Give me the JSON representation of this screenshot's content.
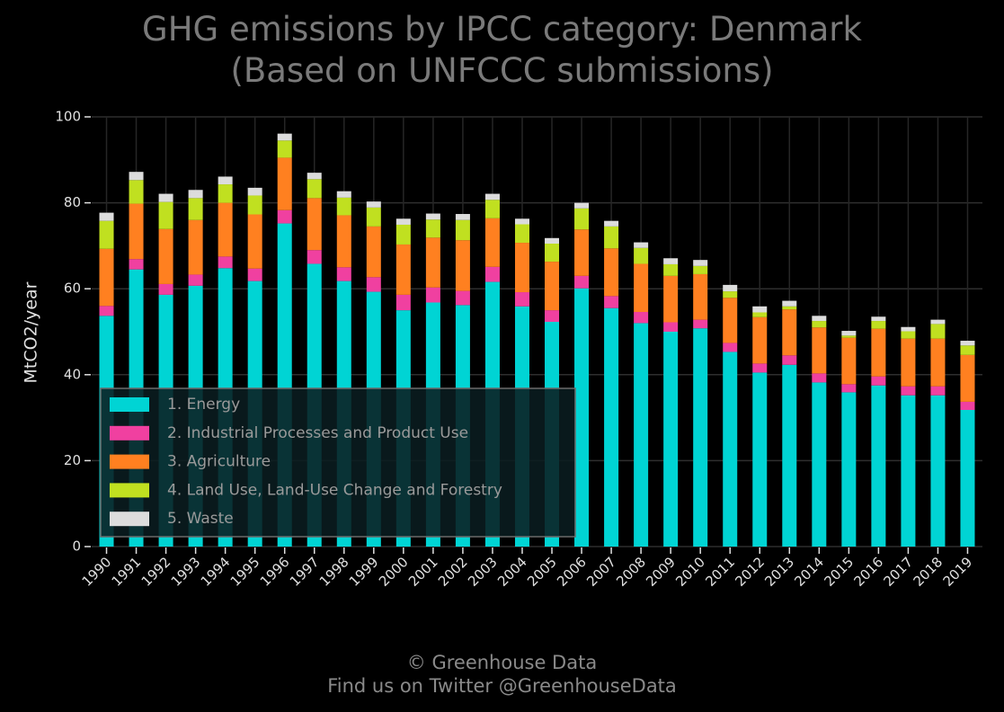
{
  "title": {
    "line1": "GHG emissions by IPCC category: Denmark",
    "line2": "(Based on UNFCCC submissions)"
  },
  "footer": {
    "line1": "© Greenhouse Data",
    "line2": "Find us on Twitter @GreenhouseData"
  },
  "chart_data": {
    "type": "bar",
    "stacked": true,
    "title": "GHG emissions by IPCC category: Denmark (Based on UNFCCC submissions)",
    "xlabel": "",
    "ylabel": "MtCO2/year",
    "ylim": [
      0,
      100
    ],
    "yticks": [
      0,
      20,
      40,
      60,
      80,
      100
    ],
    "grid": true,
    "legend_position": "lower-left",
    "categories": [
      "1990",
      "1991",
      "1992",
      "1993",
      "1994",
      "1995",
      "1996",
      "1997",
      "1998",
      "1999",
      "2000",
      "2001",
      "2002",
      "2003",
      "2004",
      "2005",
      "2006",
      "2007",
      "2008",
      "2009",
      "2010",
      "2011",
      "2012",
      "2013",
      "2014",
      "2015",
      "2016",
      "2017",
      "2018",
      "2019"
    ],
    "series": [
      {
        "name": "1. Energy",
        "color": "#00d4d4",
        "values": [
          53.7,
          64.5,
          58.6,
          60.7,
          64.8,
          61.8,
          75.2,
          65.8,
          61.8,
          59.3,
          55.0,
          56.8,
          56.2,
          61.6,
          55.9,
          52.3,
          60.1,
          55.5,
          52.0,
          50.0,
          50.8,
          45.3,
          40.5,
          42.3,
          38.2,
          35.9,
          37.5,
          35.2,
          35.2,
          31.8
        ]
      },
      {
        "name": "2. Industrial Processes and Product Use",
        "color": "#f040a0",
        "values": [
          2.3,
          2.4,
          2.5,
          2.6,
          2.7,
          2.9,
          3.1,
          3.2,
          3.2,
          3.4,
          3.6,
          3.5,
          3.3,
          3.5,
          3.3,
          2.7,
          2.9,
          2.8,
          2.6,
          2.2,
          2.0,
          2.1,
          2.1,
          2.2,
          2.1,
          1.9,
          2.1,
          2.1,
          2.1,
          1.9
        ]
      },
      {
        "name": "3. Agriculture",
        "color": "#ff8020",
        "values": [
          13.3,
          12.9,
          12.8,
          12.7,
          12.5,
          12.6,
          12.2,
          12.1,
          12.1,
          11.8,
          11.7,
          11.6,
          11.8,
          11.3,
          11.5,
          11.3,
          10.8,
          11.1,
          11.2,
          10.8,
          10.6,
          10.5,
          10.8,
          10.7,
          10.7,
          10.8,
          11.1,
          11.1,
          11.1,
          10.9
        ]
      },
      {
        "name": "4. Land Use, Land-Use Change and Forestry",
        "color": "#c0e020",
        "values": [
          6.5,
          5.5,
          6.3,
          5.1,
          4.3,
          4.4,
          4.0,
          4.4,
          4.1,
          4.4,
          4.6,
          4.2,
          4.7,
          4.3,
          4.3,
          4.2,
          4.9,
          5.1,
          3.7,
          2.7,
          1.9,
          1.5,
          1.1,
          0.7,
          1.5,
          0.5,
          1.8,
          1.7,
          3.4,
          2.2
        ]
      },
      {
        "name": "5. Waste",
        "color": "#dcdcdc",
        "values": [
          1.9,
          1.9,
          1.9,
          1.9,
          1.8,
          1.8,
          1.6,
          1.5,
          1.5,
          1.4,
          1.4,
          1.4,
          1.4,
          1.4,
          1.3,
          1.3,
          1.3,
          1.3,
          1.3,
          1.4,
          1.4,
          1.5,
          1.4,
          1.3,
          1.2,
          1.1,
          1.0,
          1.0,
          1.0,
          1.1
        ]
      }
    ]
  }
}
